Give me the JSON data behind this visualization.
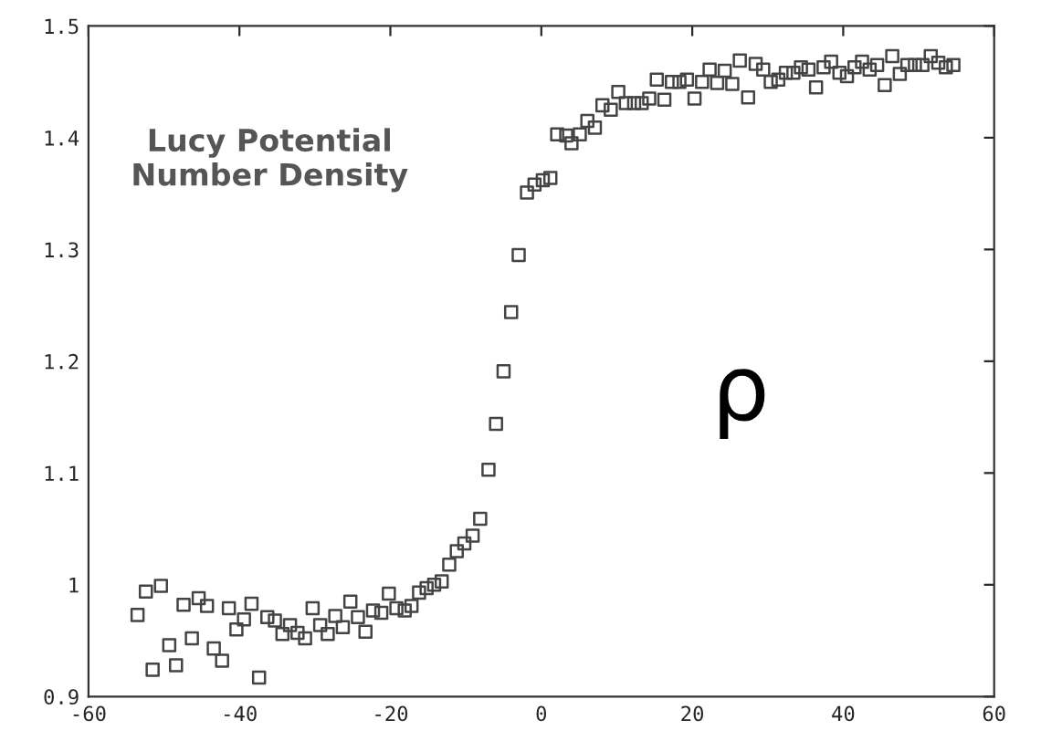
{
  "chart_data": {
    "type": "scatter",
    "marker": "square",
    "grid": false,
    "legend": false,
    "xlim": [
      -60,
      60
    ],
    "ylim": [
      0.9,
      1.5
    ],
    "xticks": [
      -60,
      -40,
      -20,
      0,
      20,
      40,
      60
    ],
    "yticks": [
      0.9,
      1,
      1.1,
      1.2,
      1.3,
      1.4,
      1.5
    ],
    "annotations": [
      {
        "text": "Lucy Potential\nNumber Density"
      },
      {
        "text": "ρ"
      }
    ],
    "series": [
      {
        "color": "#444444",
        "x": [
          -53.5,
          -52.4,
          -51.5,
          -50.4,
          -49.3,
          -48.4,
          -47.4,
          -46.3,
          -45.4,
          -44.3,
          -43.4,
          -42.3,
          -41.4,
          -40.4,
          -39.4,
          -38.4,
          -37.4,
          -36.3,
          -35.3,
          -34.3,
          -33.3,
          -32.3,
          -31.3,
          -30.3,
          -29.3,
          -28.3,
          -27.3,
          -26.3,
          -25.3,
          -24.3,
          -23.3,
          -22.3,
          -21.2,
          -20.2,
          -19.2,
          -18.1,
          -17.2,
          -16.2,
          -15.2,
          -14.2,
          -13.2,
          -12.2,
          -11.2,
          -10.2,
          -9.1,
          -8.1,
          -7.0,
          -6.0,
          -5.0,
          -4.0,
          -3.0,
          -1.9,
          -0.9,
          0.2,
          1.2,
          2.1,
          3.3,
          4.0,
          5.1,
          6.1,
          7.1,
          8.1,
          9.2,
          10.2,
          11.2,
          12.3,
          13.3,
          14.3,
          15.3,
          16.3,
          17.3,
          18.3,
          19.3,
          20.3,
          21.3,
          22.3,
          23.3,
          24.3,
          25.3,
          26.3,
          27.4,
          28.4,
          29.4,
          30.4,
          31.4,
          32.4,
          33.4,
          34.4,
          35.4,
          36.4,
          37.4,
          38.4,
          39.5,
          40.5,
          41.5,
          42.5,
          43.5,
          44.5,
          45.5,
          46.5,
          47.5,
          48.5,
          49.5,
          50.5,
          51.6,
          52.6,
          53.6,
          54.6
        ],
        "values": [
          0.973,
          0.994,
          0.924,
          0.999,
          0.946,
          0.928,
          0.982,
          0.952,
          0.988,
          0.981,
          0.943,
          0.932,
          0.979,
          0.96,
          0.969,
          0.983,
          0.917,
          0.971,
          0.968,
          0.956,
          0.964,
          0.957,
          0.952,
          0.979,
          0.964,
          0.956,
          0.972,
          0.962,
          0.985,
          0.971,
          0.958,
          0.977,
          0.975,
          0.992,
          0.979,
          0.977,
          0.981,
          0.993,
          0.997,
          1.0,
          1.003,
          1.018,
          1.03,
          1.037,
          1.044,
          1.059,
          1.103,
          1.144,
          1.191,
          1.244,
          1.295,
          1.351,
          1.358,
          1.362,
          1.364,
          1.403,
          1.402,
          1.395,
          1.403,
          1.415,
          1.409,
          1.429,
          1.425,
          1.441,
          1.431,
          1.431,
          1.431,
          1.435,
          1.452,
          1.434,
          1.45,
          1.45,
          1.452,
          1.435,
          1.45,
          1.461,
          1.449,
          1.46,
          1.448,
          1.469,
          1.436,
          1.466,
          1.461,
          1.45,
          1.452,
          1.458,
          1.458,
          1.463,
          1.461,
          1.445,
          1.463,
          1.468,
          1.458,
          1.455,
          1.463,
          1.468,
          1.461,
          1.465,
          1.447,
          1.473,
          1.457,
          1.465,
          1.465,
          1.465,
          1.473,
          1.467,
          1.463,
          1.465
        ]
      }
    ]
  }
}
